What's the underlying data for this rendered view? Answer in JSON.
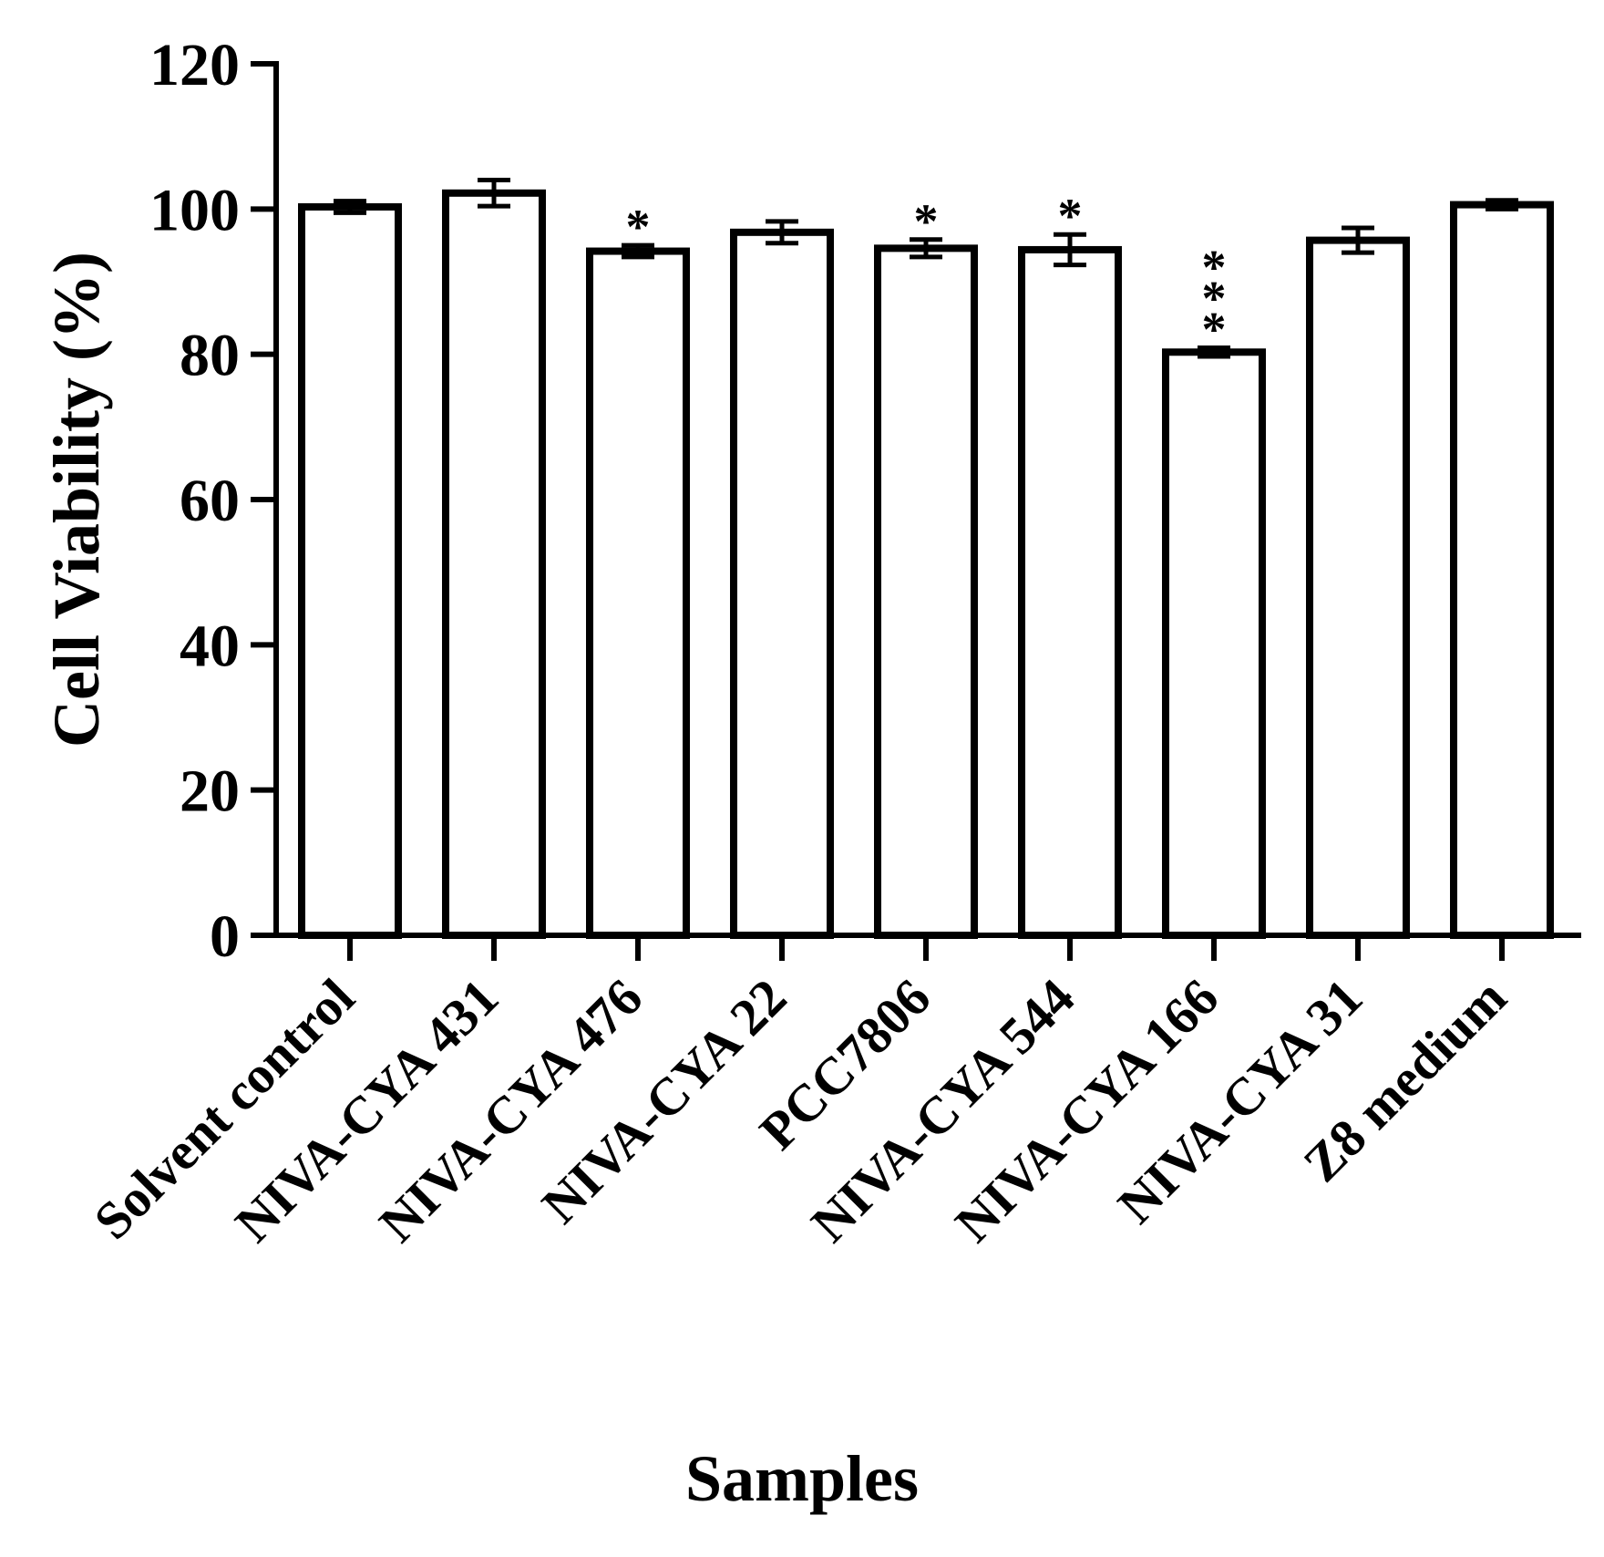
{
  "chart_data": {
    "type": "bar",
    "title": "",
    "xlabel": "Samples",
    "ylabel": "Cell Viability (%)",
    "ylim": [
      0,
      120
    ],
    "yticks": [
      "0",
      "20",
      "40",
      "60",
      "80",
      "100",
      "120"
    ],
    "grid": false,
    "legend": "none",
    "categories": [
      "Solvent control",
      "NIVA-CYA 431",
      "NIVA-CYA 476",
      "NIVA-CYA 22",
      "PCC7806",
      "NIVA-CYA 544",
      "NIVA-CYA 166",
      "NIVA-CYA 31",
      "Z8 medium"
    ],
    "values": [
      100.3,
      102.2,
      94.2,
      96.8,
      94.6,
      94.4,
      80.3,
      95.7,
      100.6
    ],
    "errors": [
      0.8,
      1.8,
      0.8,
      1.5,
      1.2,
      2.1,
      0.6,
      1.7,
      0.6
    ],
    "significance": [
      "",
      "",
      "*",
      "",
      "*",
      "*",
      "***",
      "",
      ""
    ],
    "colors": {
      "bar_fill": "#ffffff",
      "bar_stroke": "#000000"
    }
  }
}
